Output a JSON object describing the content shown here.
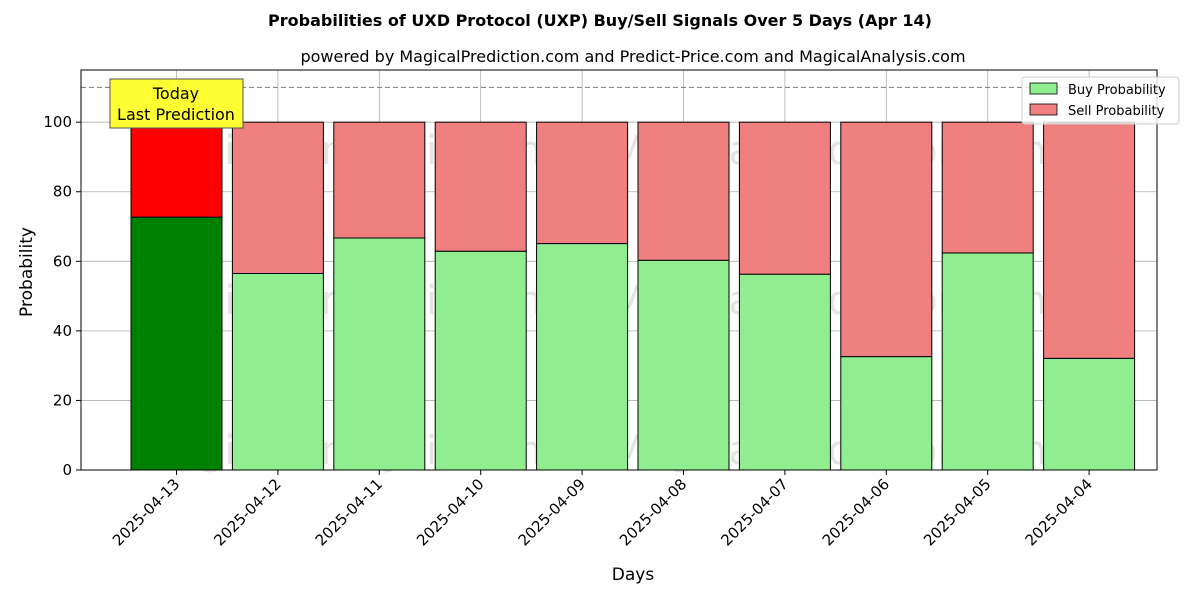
{
  "chart_data": {
    "type": "bar",
    "stacked": true,
    "title": "Probabilities of UXD Protocol (UXP) Buy/Sell Signals Over 5 Days (Apr 14)",
    "subtitle": "powered by MagicalPrediction.com and Predict-Price.com and MagicalAnalysis.com",
    "xlabel": "Days",
    "ylabel": "Probability",
    "ylim": [
      0,
      115
    ],
    "yticks": [
      0,
      20,
      40,
      60,
      80,
      100
    ],
    "grid": true,
    "legend_position": "top-right",
    "categories": [
      "2025-04-13",
      "2025-04-12",
      "2025-04-11",
      "2025-04-10",
      "2025-04-09",
      "2025-04-08",
      "2025-04-07",
      "2025-04-06",
      "2025-04-05",
      "2025-04-04"
    ],
    "series": [
      {
        "name": "Buy Probability",
        "color": "#90ee90",
        "highlight_color": "#008000",
        "values": [
          72.7,
          56.5,
          66.7,
          62.9,
          65.1,
          60.3,
          56.3,
          32.6,
          62.4,
          32.1
        ]
      },
      {
        "name": "Sell Probability",
        "color": "#f08080",
        "highlight_color": "#ff0000",
        "values": [
          27.3,
          43.5,
          33.3,
          37.1,
          34.9,
          39.7,
          43.7,
          67.4,
          37.6,
          67.9
        ]
      }
    ],
    "highlight_index": 0,
    "reference_line": {
      "y": 110,
      "style": "dashed"
    },
    "annotation": {
      "lines": [
        "Today",
        "Last Prediction"
      ],
      "bg_color": "#ffff33"
    },
    "watermarks": [
      "MagicalAnalysis.com",
      "MagicalPrediction.com"
    ]
  }
}
